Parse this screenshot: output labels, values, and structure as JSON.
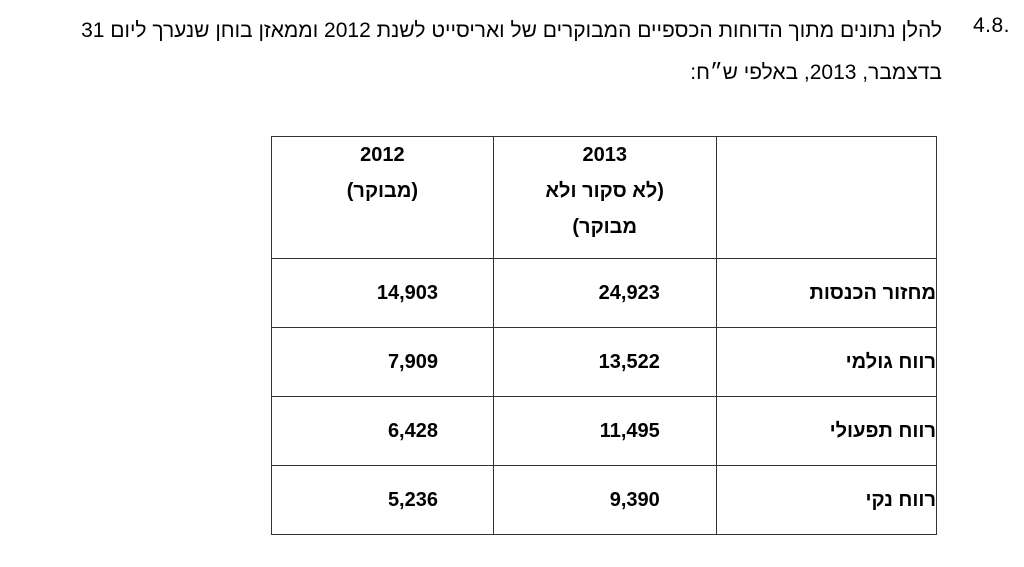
{
  "section": {
    "number": "4.8.",
    "text": "להלן נתונים מתוך הדוחות הכספיים המבוקרים של ואריסייט לשנת 2012 וממאזן בוחן שנערך ליום 31 בדצמבר, 2013, באלפי ש״ח:"
  },
  "table": {
    "corner": "",
    "col_2013": {
      "year": "2013",
      "note_line1": "(לא סקור ולא",
      "note_line2": "מבוקר)"
    },
    "col_2012": {
      "year": "2012",
      "note_line1": "(מבוקר)"
    },
    "rows": [
      {
        "label": "מחזור הכנסות",
        "v2013": "24,923",
        "v2012": "14,903"
      },
      {
        "label": "רווח גולמי",
        "v2013": "13,522",
        "v2012": "7,909"
      },
      {
        "label": "רווח תפעולי",
        "v2013": "11,495",
        "v2012": "6,428"
      },
      {
        "label": "רווח נקי",
        "v2013": "9,390",
        "v2012": "5,236"
      }
    ]
  }
}
